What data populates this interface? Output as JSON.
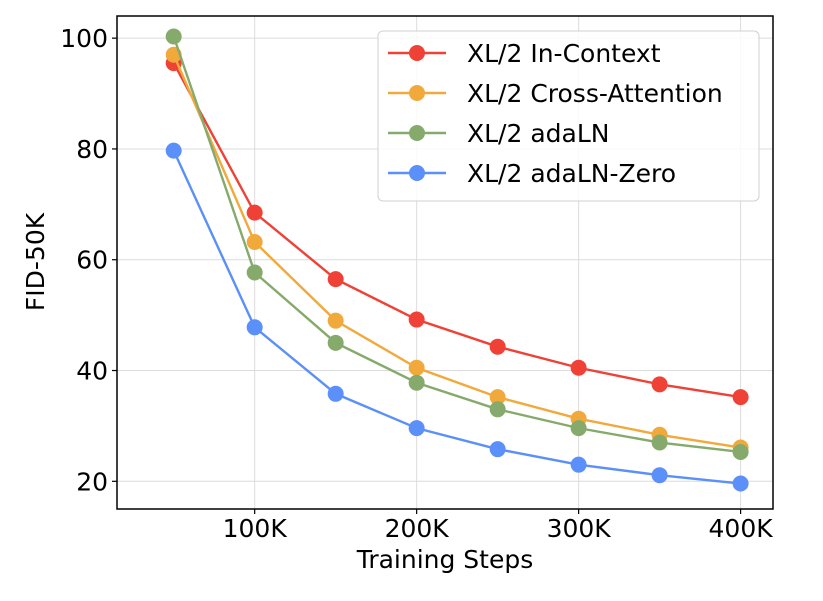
{
  "chart_data": {
    "type": "line",
    "title": "",
    "xlabel": "Training Steps",
    "ylabel": "FID-50K",
    "x": [
      50000,
      100000,
      150000,
      200000,
      250000,
      300000,
      350000,
      400000
    ],
    "xlim": [
      15000,
      420000
    ],
    "ylim": [
      15,
      104
    ],
    "xticks": [
      100000,
      200000,
      300000,
      400000
    ],
    "xtick_labels": [
      "100K",
      "200K",
      "300K",
      "400K"
    ],
    "yticks": [
      20,
      40,
      60,
      80,
      100
    ],
    "ytick_labels": [
      "20",
      "40",
      "60",
      "80",
      "100"
    ],
    "grid": true,
    "legend_position": "top-right",
    "series": [
      {
        "name": "XL/2 In-Context",
        "color": "#ef4136",
        "values": [
          95.5,
          68.5,
          56.5,
          49.2,
          44.3,
          40.5,
          37.5,
          35.2
        ]
      },
      {
        "name": "XL/2 Cross-Attention",
        "color": "#f2a93b",
        "values": [
          97.0,
          63.2,
          49.0,
          40.5,
          35.2,
          31.3,
          28.4,
          26.1
        ]
      },
      {
        "name": "XL/2 adaLN",
        "color": "#85aa6b",
        "values": [
          100.3,
          57.7,
          45.0,
          37.8,
          33.0,
          29.6,
          27.0,
          25.3
        ]
      },
      {
        "name": "XL/2 adaLN-Zero",
        "color": "#5b8ff9",
        "values": [
          79.7,
          47.8,
          35.8,
          29.6,
          25.8,
          23.0,
          21.1,
          19.6
        ]
      }
    ]
  }
}
